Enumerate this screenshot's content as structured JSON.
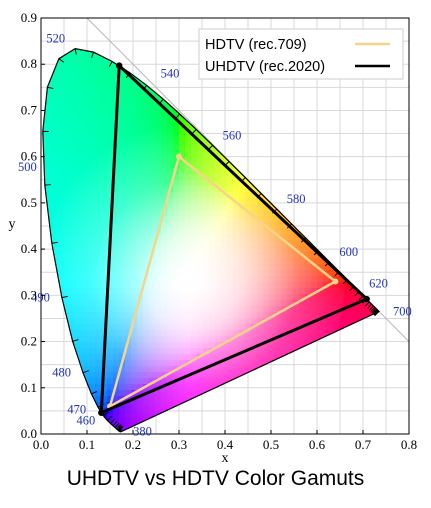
{
  "chart_data": {
    "type": "scatter",
    "title": "UHDTV vs HDTV Color Gamuts",
    "xlabel": "x",
    "ylabel": "y",
    "xlim": [
      0,
      0.8
    ],
    "ylim": [
      0,
      0.9
    ],
    "x_ticks": [
      "0.0",
      "0.1",
      "0.2",
      "0.3",
      "0.4",
      "0.5",
      "0.6",
      "0.7",
      "0.8"
    ],
    "y_ticks": [
      "0.0",
      "0.1",
      "0.2",
      "0.3",
      "0.4",
      "0.5",
      "0.6",
      "0.7",
      "0.8",
      "0.9"
    ],
    "grid": true,
    "legend_position": "top-right",
    "series": [
      {
        "name": "HDTV (rec.709)",
        "color": "#f8d48a",
        "points": [
          [
            0.64,
            0.33
          ],
          [
            0.3,
            0.6
          ],
          [
            0.15,
            0.06
          ],
          [
            0.64,
            0.33
          ]
        ]
      },
      {
        "name": "UHDTV (rec.2020)",
        "color": "#000000",
        "points": [
          [
            0.708,
            0.292
          ],
          [
            0.17,
            0.797
          ],
          [
            0.131,
            0.046
          ],
          [
            0.708,
            0.292
          ]
        ]
      }
    ],
    "spectral_locus": [
      [
        0.1741,
        0.005
      ],
      [
        0.1738,
        0.0049
      ],
      [
        0.1736,
        0.0049
      ],
      [
        0.1733,
        0.0048
      ],
      [
        0.173,
        0.0048
      ],
      [
        0.1726,
        0.0048
      ],
      [
        0.1721,
        0.0048
      ],
      [
        0.1714,
        0.0051
      ],
      [
        0.1703,
        0.0058
      ],
      [
        0.1689,
        0.0069
      ],
      [
        0.1669,
        0.0086
      ],
      [
        0.1644,
        0.0109
      ],
      [
        0.1611,
        0.0138
      ],
      [
        0.1566,
        0.0177
      ],
      [
        0.151,
        0.0227
      ],
      [
        0.144,
        0.0297
      ],
      [
        0.1355,
        0.0399
      ],
      [
        0.1241,
        0.0578
      ],
      [
        0.1096,
        0.0868
      ],
      [
        0.0913,
        0.1327
      ],
      [
        0.0687,
        0.2007
      ],
      [
        0.0454,
        0.295
      ],
      [
        0.0235,
        0.4127
      ],
      [
        0.0082,
        0.5384
      ],
      [
        0.0039,
        0.6548
      ],
      [
        0.0139,
        0.7502
      ],
      [
        0.0389,
        0.812
      ],
      [
        0.0743,
        0.8338
      ],
      [
        0.1142,
        0.8262
      ],
      [
        0.1547,
        0.8059
      ],
      [
        0.1929,
        0.7816
      ],
      [
        0.2296,
        0.7543
      ],
      [
        0.2658,
        0.7243
      ],
      [
        0.3016,
        0.6923
      ],
      [
        0.3373,
        0.6589
      ],
      [
        0.3731,
        0.6245
      ],
      [
        0.4087,
        0.5896
      ],
      [
        0.4441,
        0.5547
      ],
      [
        0.4788,
        0.5202
      ],
      [
        0.5125,
        0.4866
      ],
      [
        0.5448,
        0.4544
      ],
      [
        0.5752,
        0.4242
      ],
      [
        0.6029,
        0.3965
      ],
      [
        0.627,
        0.3725
      ],
      [
        0.6482,
        0.3514
      ],
      [
        0.6658,
        0.334
      ],
      [
        0.6801,
        0.3197
      ],
      [
        0.6915,
        0.3083
      ],
      [
        0.7006,
        0.2993
      ],
      [
        0.7079,
        0.292
      ],
      [
        0.714,
        0.2859
      ],
      [
        0.719,
        0.2809
      ],
      [
        0.723,
        0.277
      ],
      [
        0.726,
        0.274
      ],
      [
        0.7283,
        0.2717
      ],
      [
        0.73,
        0.27
      ],
      [
        0.7311,
        0.2689
      ],
      [
        0.732,
        0.268
      ],
      [
        0.7327,
        0.2673
      ],
      [
        0.7334,
        0.2666
      ],
      [
        0.734,
        0.266
      ],
      [
        0.7344,
        0.2656
      ],
      [
        0.7346,
        0.2654
      ],
      [
        0.7347,
        0.2653
      ]
    ],
    "wavelength_labels": [
      {
        "label": "380",
        "x": 0.1741,
        "y": 0.005
      },
      {
        "label": "460",
        "x": 0.144,
        "y": 0.0297
      },
      {
        "label": "470",
        "x": 0.1241,
        "y": 0.0578
      },
      {
        "label": "480",
        "x": 0.0913,
        "y": 0.1327
      },
      {
        "label": "490",
        "x": 0.0454,
        "y": 0.295
      },
      {
        "label": "500",
        "x": 0.0082,
        "y": 0.5384
      },
      {
        "label": "520",
        "x": 0.0743,
        "y": 0.8338
      },
      {
        "label": "540",
        "x": 0.2296,
        "y": 0.7543
      },
      {
        "label": "560",
        "x": 0.3731,
        "y": 0.6245
      },
      {
        "label": "580",
        "x": 0.5125,
        "y": 0.4866
      },
      {
        "label": "600",
        "x": 0.627,
        "y": 0.3725
      },
      {
        "label": "620",
        "x": 0.6915,
        "y": 0.3083
      },
      {
        "label": "700",
        "x": 0.7347,
        "y": 0.2653
      }
    ]
  }
}
